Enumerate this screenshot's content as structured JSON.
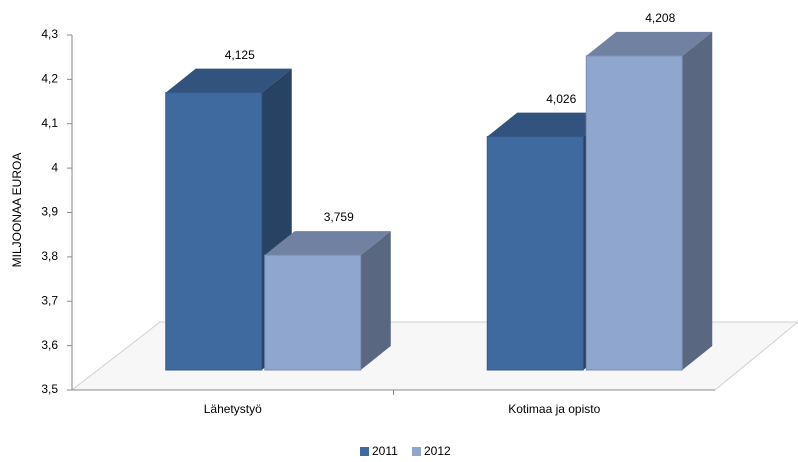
{
  "chart_data": {
    "type": "bar3d",
    "y_label": "MILJOONAA EUROA",
    "categories": [
      "Lähetystyö",
      "Kotimaa ja opisto"
    ],
    "series": [
      {
        "name": "2011",
        "color": "#3f6aa0",
        "values": [
          4.125,
          4.026
        ],
        "value_labels": [
          "4,125",
          "4,026"
        ]
      },
      {
        "name": "2012",
        "color": "#8fa6cf",
        "values": [
          3.759,
          4.208
        ],
        "value_labels": [
          "3,759",
          "4,208"
        ]
      }
    ],
    "ylim": [
      3.5,
      4.3
    ],
    "yticks": [
      {
        "value": 3.5,
        "label": "3,5"
      },
      {
        "value": 3.6,
        "label": "3,6"
      },
      {
        "value": 3.7,
        "label": "3,7"
      },
      {
        "value": 3.8,
        "label": "3,8"
      },
      {
        "value": 3.9,
        "label": "3,9"
      },
      4,
      {
        "value": 4.1,
        "label": "4,1"
      },
      {
        "value": 4.2,
        "label": "4,2"
      },
      {
        "value": 4.3,
        "label": "4,3"
      }
    ],
    "legend": "bottom"
  }
}
